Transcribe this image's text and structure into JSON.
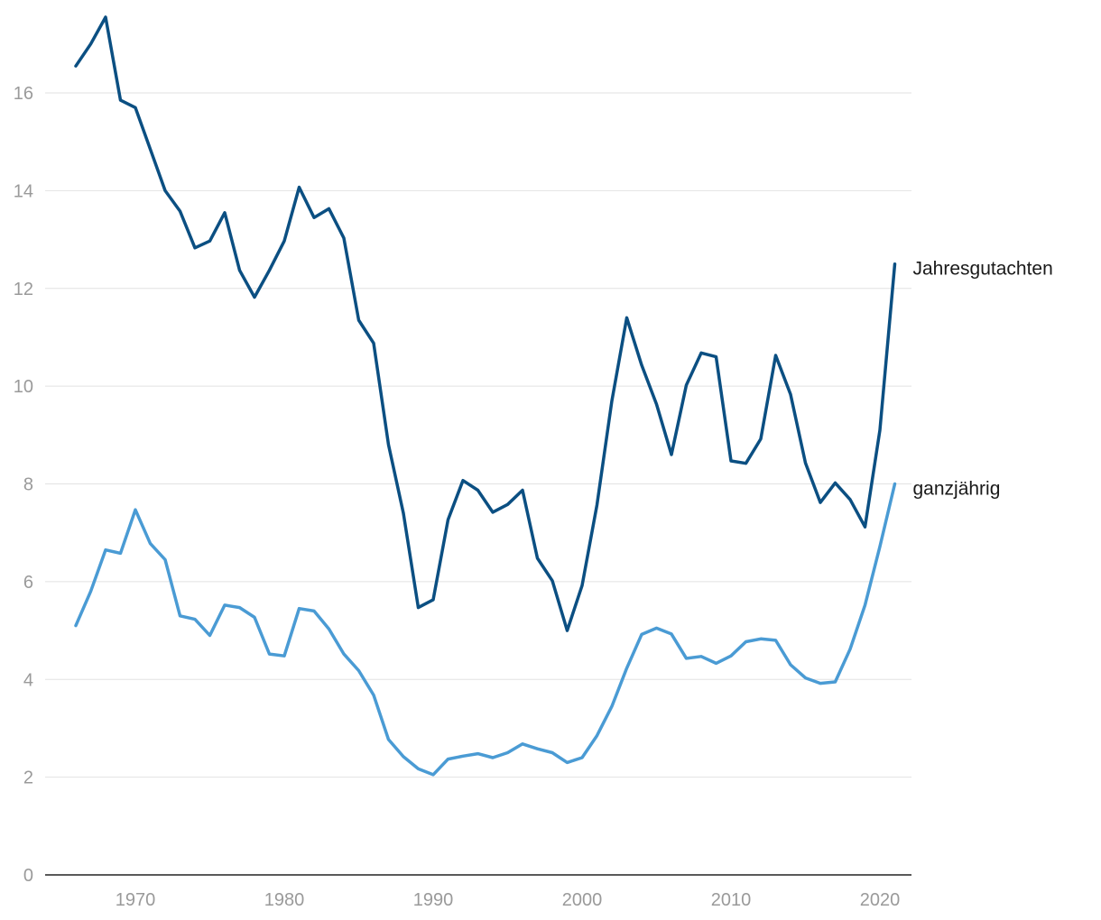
{
  "chart_data": {
    "type": "line",
    "title": "",
    "xlabel": "",
    "ylabel": "",
    "xlim": [
      1964.2,
      2022.3
    ],
    "ylim": [
      0,
      17.5
    ],
    "x_ticks": [
      1970,
      1980,
      1990,
      2000,
      2010,
      2020
    ],
    "y_ticks": [
      0,
      2,
      4,
      6,
      8,
      10,
      12,
      14,
      16
    ],
    "grid": true,
    "legend": "end-of-line labels",
    "x": [
      1966,
      1967,
      1968,
      1969,
      1970,
      1971,
      1972,
      1973,
      1974,
      1975,
      1976,
      1977,
      1978,
      1979,
      1980,
      1981,
      1982,
      1983,
      1984,
      1985,
      1986,
      1987,
      1988,
      1989,
      1990,
      1991,
      1992,
      1993,
      1994,
      1995,
      1996,
      1997,
      1998,
      1999,
      2000,
      2001,
      2002,
      2003,
      2004,
      2005,
      2006,
      2007,
      2008,
      2009,
      2010,
      2011,
      2012,
      2013,
      2014,
      2015,
      2016,
      2017,
      2018,
      2019,
      2020,
      2021
    ],
    "series": [
      {
        "name": "Jahresgutachten",
        "color": "#0b4f82",
        "values": [
          16.55,
          17.0,
          17.55,
          15.85,
          15.7,
          14.85,
          14.0,
          13.58,
          12.83,
          12.97,
          13.55,
          12.37,
          11.82,
          12.37,
          12.97,
          14.07,
          13.45,
          13.63,
          13.03,
          11.35,
          10.88,
          8.8,
          7.4,
          5.47,
          5.63,
          7.27,
          8.07,
          7.87,
          7.42,
          7.58,
          7.87,
          6.48,
          6.02,
          5.0,
          5.92,
          7.57,
          9.7,
          11.4,
          10.43,
          9.63,
          8.6,
          10.02,
          10.68,
          10.6,
          8.47,
          8.42,
          8.92,
          10.63,
          9.83,
          8.43,
          7.62,
          8.02,
          7.68,
          7.12,
          9.1,
          12.5
        ]
      },
      {
        "name": "ganzjährig",
        "color": "#4a9bd4",
        "values": [
          5.1,
          5.8,
          6.65,
          6.58,
          7.47,
          6.78,
          6.45,
          5.3,
          5.23,
          4.9,
          5.52,
          5.47,
          5.27,
          4.52,
          4.48,
          5.45,
          5.4,
          5.03,
          4.52,
          4.18,
          3.68,
          2.77,
          2.42,
          2.17,
          2.05,
          2.37,
          2.43,
          2.48,
          2.4,
          2.5,
          2.68,
          2.58,
          2.5,
          2.3,
          2.4,
          2.85,
          3.45,
          4.23,
          4.92,
          5.05,
          4.93,
          4.43,
          4.47,
          4.33,
          4.48,
          4.77,
          4.83,
          4.8,
          4.3,
          4.03,
          3.92,
          3.95,
          4.62,
          5.52,
          6.72,
          8.0
        ]
      }
    ]
  }
}
